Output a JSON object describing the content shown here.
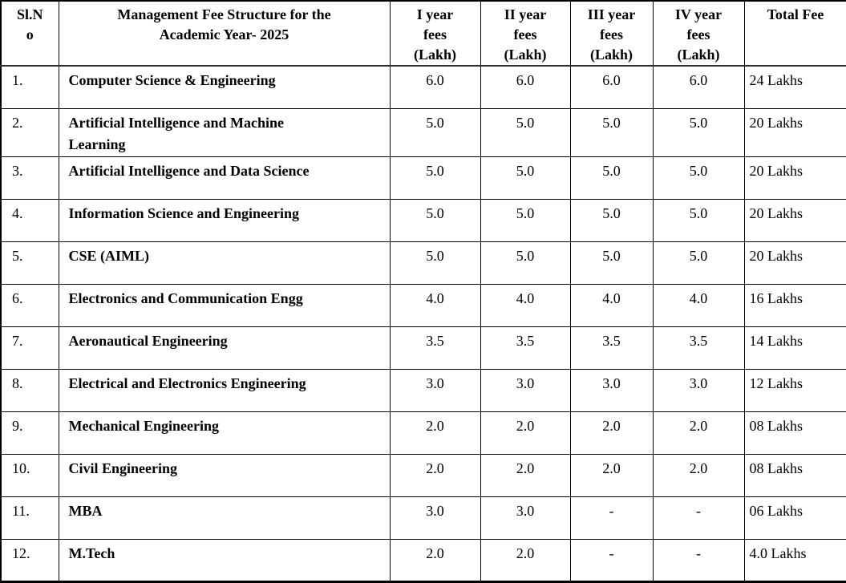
{
  "table": {
    "columns": [
      {
        "key": "sl",
        "label": "Sl.N\no"
      },
      {
        "key": "name",
        "label": "Management Fee Structure for the\nAcademic Year- 2025"
      },
      {
        "key": "y1",
        "label": "I year\nfees\n(Lakh)"
      },
      {
        "key": "y2",
        "label": "II year\nfees\n(Lakh)"
      },
      {
        "key": "y3",
        "label": "III year\nfees\n(Lakh)"
      },
      {
        "key": "y4",
        "label": "IV year\nfees\n(Lakh)"
      },
      {
        "key": "total",
        "label": "Total Fee"
      }
    ],
    "rows": [
      {
        "sl": "1.",
        "name": "Computer Science & Engineering",
        "y1": "6.0",
        "y2": "6.0",
        "y3": "6.0",
        "y4": "6.0",
        "total": "24 Lakhs"
      },
      {
        "sl": "2.",
        "name": "Artificial Intelligence and Machine\nLearning",
        "y1": "5.0",
        "y2": "5.0",
        "y3": "5.0",
        "y4": "5.0",
        "total": "20 Lakhs"
      },
      {
        "sl": "3.",
        "name": "Artificial Intelligence and Data Science",
        "y1": "5.0",
        "y2": "5.0",
        "y3": "5.0",
        "y4": "5.0",
        "total": "20 Lakhs"
      },
      {
        "sl": "4.",
        "name": "Information Science and Engineering",
        "y1": "5.0",
        "y2": "5.0",
        "y3": "5.0",
        "y4": "5.0",
        "total": "20 Lakhs"
      },
      {
        "sl": "5.",
        "name": "CSE (AIML)",
        "y1": "5.0",
        "y2": "5.0",
        "y3": "5.0",
        "y4": "5.0",
        "total": "20 Lakhs"
      },
      {
        "sl": "6.",
        "name": "Electronics and Communication Engg",
        "y1": "4.0",
        "y2": "4.0",
        "y3": "4.0",
        "y4": "4.0",
        "total": "16 Lakhs"
      },
      {
        "sl": "7.",
        "name": "Aeronautical Engineering",
        "y1": "3.5",
        "y2": "3.5",
        "y3": "3.5",
        "y4": "3.5",
        "total": "14 Lakhs"
      },
      {
        "sl": "8.",
        "name": "Electrical and Electronics Engineering",
        "y1": "3.0",
        "y2": "3.0",
        "y3": "3.0",
        "y4": "3.0",
        "total": "12 Lakhs"
      },
      {
        "sl": "9.",
        "name": "Mechanical Engineering",
        "y1": "2.0",
        "y2": "2.0",
        "y3": "2.0",
        "y4": "2.0",
        "total": "08 Lakhs"
      },
      {
        "sl": "10.",
        "name": "Civil Engineering",
        "y1": "2.0",
        "y2": "2.0",
        "y3": "2.0",
        "y4": "2.0",
        "total": "08 Lakhs"
      },
      {
        "sl": "11.",
        "name": "MBA",
        "y1": "3.0",
        "y2": "3.0",
        "y3": "-",
        "y4": "-",
        "total": "06 Lakhs"
      },
      {
        "sl": "12.",
        "name": "M.Tech",
        "y1": "2.0",
        "y2": "2.0",
        "y3": "-",
        "y4": "-",
        "total": "4.0 Lakhs"
      }
    ],
    "colors": {
      "text": "#000000",
      "background": "#ffffff",
      "border": "#000000",
      "header_divider": "#2e2e2e"
    }
  }
}
